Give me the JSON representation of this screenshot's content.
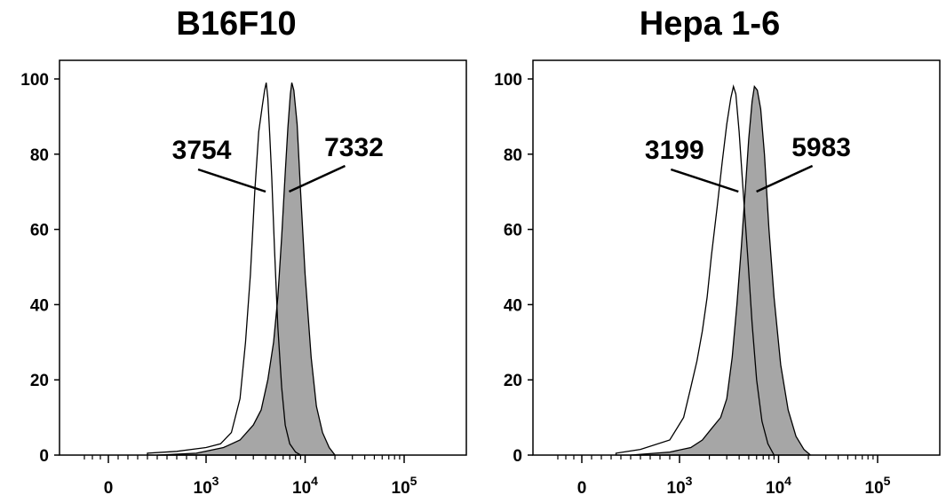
{
  "chart_data": [
    {
      "type": "area",
      "title": "B16F10",
      "xscale": "biexponential",
      "yticks": [
        "0",
        "20",
        "40",
        "60",
        "80",
        "100"
      ],
      "ylim": [
        0,
        100
      ],
      "xticks": [
        {
          "value": 0,
          "base": "0",
          "exp": ""
        },
        {
          "value": 1000,
          "base": "10",
          "exp": "3"
        },
        {
          "value": 10000,
          "base": "10",
          "exp": "4"
        },
        {
          "value": 100000,
          "base": "10",
          "exp": "5"
        }
      ],
      "series": [
        {
          "fill": "none",
          "points": [
            [
              400,
              0.5
            ],
            [
              700,
              1
            ],
            [
              1000,
              2
            ],
            [
              1400,
              3
            ],
            [
              1800,
              6
            ],
            [
              2200,
              15
            ],
            [
              2500,
              30
            ],
            [
              2800,
              48
            ],
            [
              3100,
              70
            ],
            [
              3400,
              86
            ],
            [
              3700,
              93
            ],
            [
              3900,
              97
            ],
            [
              4050,
              99
            ],
            [
              4200,
              95
            ],
            [
              4400,
              85
            ],
            [
              4600,
              74
            ],
            [
              4900,
              55
            ],
            [
              5300,
              34
            ],
            [
              5800,
              18
            ],
            [
              6300,
              8
            ],
            [
              7000,
              3
            ],
            [
              8000,
              0.8
            ],
            [
              9000,
              0
            ]
          ]
        },
        {
          "fill": "#a6a6a6",
          "points": [
            [
              500,
              0
            ],
            [
              900,
              0.5
            ],
            [
              1500,
              2
            ],
            [
              2200,
              4
            ],
            [
              3000,
              8
            ],
            [
              3600,
              12
            ],
            [
              4200,
              20
            ],
            [
              4800,
              30
            ],
            [
              5300,
              42
            ],
            [
              5800,
              58
            ],
            [
              6300,
              75
            ],
            [
              6700,
              87
            ],
            [
              7100,
              96
            ],
            [
              7332,
              99
            ],
            [
              7700,
              97
            ],
            [
              8300,
              88
            ],
            [
              9000,
              70
            ],
            [
              10000,
              48
            ],
            [
              11500,
              26
            ],
            [
              13000,
              13
            ],
            [
              15000,
              6
            ],
            [
              17500,
              2
            ],
            [
              20000,
              0
            ]
          ]
        }
      ],
      "annotations": [
        {
          "label": "3754",
          "value": 3754
        },
        {
          "label": "7332",
          "value": 7332
        }
      ]
    },
    {
      "type": "area",
      "title": "Hepa 1-6",
      "xscale": "biexponential",
      "yticks": [
        "0",
        "20",
        "40",
        "60",
        "80",
        "100"
      ],
      "ylim": [
        0,
        100
      ],
      "xticks": [
        {
          "value": 0,
          "base": "0",
          "exp": ""
        },
        {
          "value": 1000,
          "base": "10",
          "exp": "3"
        },
        {
          "value": 10000,
          "base": "10",
          "exp": "4"
        },
        {
          "value": 100000,
          "base": "10",
          "exp": "5"
        }
      ],
      "series": [
        {
          "fill": "none",
          "points": [
            [
              350,
              0.5
            ],
            [
              600,
              1.5
            ],
            [
              900,
              4
            ],
            [
              1100,
              10
            ],
            [
              1300,
              18
            ],
            [
              1500,
              25
            ],
            [
              1700,
              33
            ],
            [
              1900,
              42
            ],
            [
              2100,
              53
            ],
            [
              2400,
              66
            ],
            [
              2700,
              78
            ],
            [
              3000,
              88
            ],
            [
              3300,
              95
            ],
            [
              3500,
              98
            ],
            [
              3700,
              96
            ],
            [
              4000,
              86
            ],
            [
              4400,
              70
            ],
            [
              4900,
              52
            ],
            [
              5400,
              35
            ],
            [
              6000,
              20
            ],
            [
              6800,
              9
            ],
            [
              7800,
              3
            ],
            [
              9000,
              0
            ]
          ]
        },
        {
          "fill": "#a6a6a6",
          "points": [
            [
              500,
              0
            ],
            [
              900,
              0.8
            ],
            [
              1300,
              2
            ],
            [
              1700,
              4
            ],
            [
              2100,
              7
            ],
            [
              2600,
              10
            ],
            [
              3000,
              15
            ],
            [
              3400,
              26
            ],
            [
              3800,
              40
            ],
            [
              4200,
              55
            ],
            [
              4600,
              70
            ],
            [
              5000,
              84
            ],
            [
              5400,
              94
            ],
            [
              5700,
              98
            ],
            [
              6100,
              97
            ],
            [
              6600,
              92
            ],
            [
              7200,
              80
            ],
            [
              8000,
              60
            ],
            [
              9000,
              42
            ],
            [
              10500,
              24
            ],
            [
              12500,
              12
            ],
            [
              15000,
              5
            ],
            [
              18000,
              1.5
            ],
            [
              21000,
              0
            ]
          ]
        }
      ],
      "annotations": [
        {
          "label": "3199",
          "value": 3199
        },
        {
          "label": "5983",
          "value": 5983
        }
      ]
    }
  ]
}
